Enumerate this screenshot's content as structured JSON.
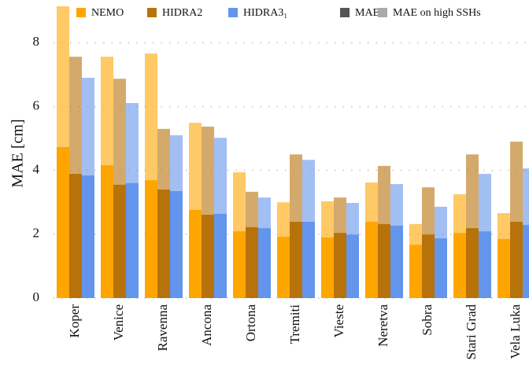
{
  "chart_data": {
    "type": "bar",
    "y_label": "MAE [cm]",
    "categories": [
      "Koper",
      "Venice",
      "Ravenna",
      "Ancona",
      "Ortona",
      "Tremiti",
      "Vieste",
      "Neretva",
      "Sobra",
      "Stari Grad",
      "Vela Luka"
    ],
    "series": [
      {
        "name": "NEMO",
        "color": "#ffa500",
        "values": [
          4.73,
          4.16,
          3.69,
          2.76,
          2.09,
          1.92,
          1.9,
          2.39,
          1.67,
          2.04,
          1.85
        ],
        "high_values": [
          9.14,
          7.56,
          7.66,
          5.49,
          3.94,
          3.0,
          3.03,
          3.62,
          2.32,
          3.25,
          2.66
        ]
      },
      {
        "name": "HIDRA2",
        "color": "#b8720a",
        "values": [
          3.89,
          3.55,
          3.4,
          2.61,
          2.22,
          2.39,
          2.04,
          2.32,
          1.99,
          2.19,
          2.39
        ],
        "high_values": [
          7.56,
          6.87,
          5.3,
          5.37,
          3.33,
          4.5,
          3.15,
          4.14,
          3.47,
          4.5,
          4.9
        ]
      },
      {
        "name": "HIDRA3₁",
        "color": "#6495ed",
        "values": [
          3.84,
          3.6,
          3.35,
          2.64,
          2.19,
          2.39,
          1.99,
          2.27,
          1.87,
          2.09,
          2.29
        ],
        "high_values": [
          6.9,
          6.11,
          5.1,
          5.02,
          3.15,
          4.33,
          2.98,
          3.57,
          2.86,
          3.89,
          4.06
        ]
      }
    ],
    "measures": [
      {
        "name": "MAE",
        "color": "#555555"
      },
      {
        "name": "MAE on high SSHs",
        "color": "#aaaaaa"
      }
    ],
    "ylim": [
      0,
      9.14
    ],
    "yticks": [
      0,
      2,
      4,
      6,
      8
    ],
    "grid": true
  }
}
